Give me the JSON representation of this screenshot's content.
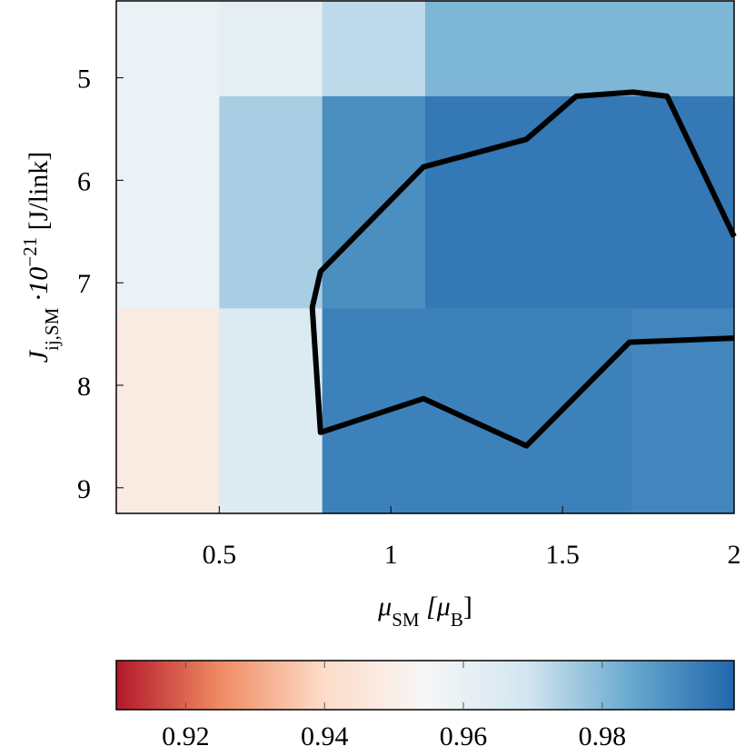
{
  "chart_data": {
    "type": "heatmap",
    "x_edges": [
      0.2,
      0.5,
      0.8,
      1.1,
      1.4,
      1.7,
      2.0
    ],
    "y_edges": [
      4.25,
      5.18,
      7.25,
      9.25
    ],
    "values": [
      [
        0.959,
        0.962,
        0.972,
        0.981,
        0.981,
        0.981
      ],
      [
        0.959,
        0.975,
        0.99,
        0.995,
        0.995,
        0.995
      ],
      [
        0.948,
        0.965,
        0.993,
        0.993,
        0.993,
        0.992
      ]
    ],
    "xlim": [
      0.2,
      2.0
    ],
    "ylim": [
      4.25,
      9.25
    ],
    "y_reversed": true,
    "xticks": [
      0.5,
      1,
      1.5,
      2
    ],
    "yticks": [
      5,
      6,
      7,
      8,
      9
    ],
    "xlabel": [
      "μ",
      "SM",
      " [μ",
      "B",
      "]"
    ],
    "ylabel": [
      "J",
      "ij,SM",
      " ·10",
      "−21",
      " [J/link]"
    ],
    "contour": {
      "color": "#000000",
      "x": [
        2.0,
        1.805,
        1.705,
        1.54,
        1.395,
        1.095,
        0.795,
        0.771,
        0.795,
        1.095,
        1.395,
        1.695,
        2.0
      ],
      "y": [
        6.55,
        5.18,
        5.14,
        5.18,
        5.6,
        5.87,
        6.89,
        7.24,
        8.46,
        8.13,
        8.59,
        7.58,
        7.54
      ]
    },
    "colormap": [
      "#b2182b",
      "#ef8a62",
      "#fddbc7",
      "#f7f7f7",
      "#d1e5f0",
      "#67a9cf",
      "#2166ac"
    ],
    "clim": [
      0.91,
      0.999
    ],
    "cticks": [
      0.92,
      0.94,
      0.96,
      0.98
    ]
  }
}
